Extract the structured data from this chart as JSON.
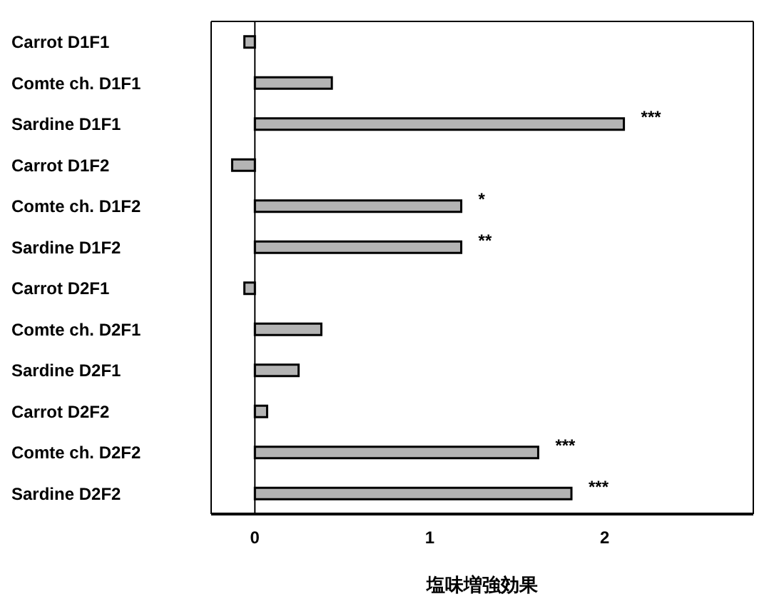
{
  "chart_data": {
    "type": "bar",
    "orientation": "horizontal",
    "xlabel": "塩味増強効果",
    "categories": [
      "Carrot D1F1",
      "Comte ch. D1F1",
      "Sardine D1F1",
      "Carrot D1F2",
      "Comte ch. D1F2",
      "Sardine D1F2",
      "Carrot D2F1",
      "Comte ch. D2F1",
      "Sardine D2F1",
      "Carrot D2F2",
      "Comte ch. D2F2",
      "Sardine D2F2"
    ],
    "values": [
      -0.06,
      0.44,
      2.11,
      -0.13,
      1.18,
      1.18,
      -0.06,
      0.38,
      0.25,
      0.07,
      1.62,
      1.81
    ],
    "color": "#b4b4b4",
    "xlim": [
      -0.25,
      2.85
    ],
    "xticks": [
      0,
      1,
      2
    ],
    "ref_lines": [
      {
        "axis": "x",
        "value": 0,
        "color": "#000000"
      }
    ],
    "annotations": [
      {
        "text": "***",
        "x": 2.11,
        "y": "Sardine D1F1"
      },
      {
        "text": "*",
        "x": 1.18,
        "y": "Comte ch. D1F2"
      },
      {
        "text": "**",
        "x": 1.18,
        "y": "Sardine D1F2"
      },
      {
        "text": "***",
        "x": 1.62,
        "y": "Comte ch. D2F2"
      },
      {
        "text": "***",
        "x": 1.81,
        "y": "Sardine D2F2"
      }
    ],
    "grid": false,
    "legend": false
  }
}
